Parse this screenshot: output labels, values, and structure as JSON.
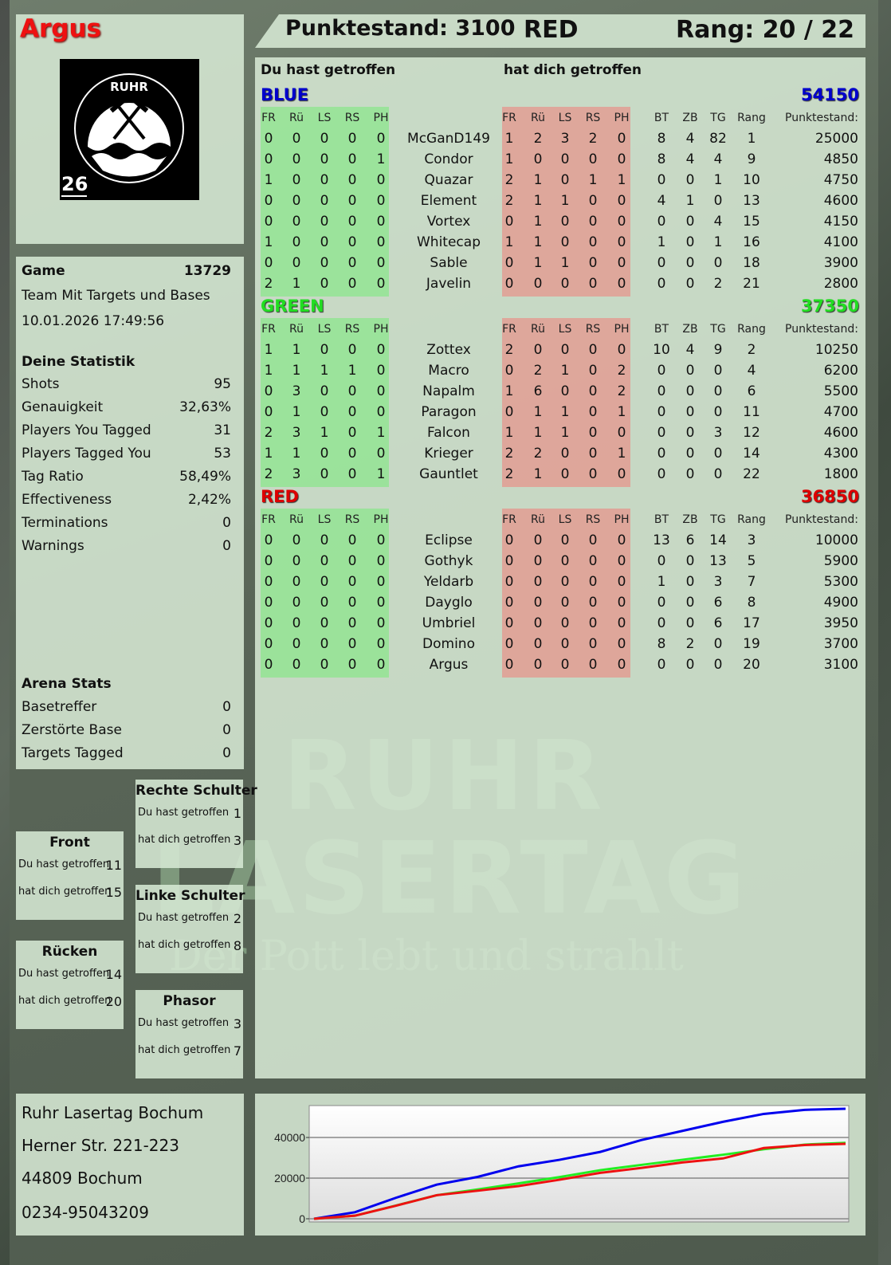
{
  "player": {
    "name": "Argus",
    "badge_number": "26",
    "logo_text": "RUHR LASERTAG"
  },
  "header": {
    "score_label": "Punktestand: 3100",
    "team": "RED",
    "rank_label": "Rang: 20 / 22"
  },
  "main": {
    "you_hit_label": "Du hast getroffen",
    "hit_you_label": "hat dich getroffen",
    "columns_hit": [
      "FR",
      "Rü",
      "LS",
      "RS",
      "PH"
    ],
    "columns_stats": [
      "BT",
      "ZB",
      "TG",
      "Rang"
    ],
    "score_header": "Punktestand:",
    "teams": [
      {
        "name": "BLUE",
        "color": "#0000cc",
        "total": "54150",
        "players": [
          [
            "McGanD149",
            [
              0,
              0,
              0,
              0,
              0
            ],
            [
              1,
              2,
              3,
              2,
              0
            ],
            [
              8,
              4,
              82,
              1
            ],
            25000
          ],
          [
            "Condor",
            [
              0,
              0,
              0,
              0,
              1
            ],
            [
              1,
              0,
              0,
              0,
              0
            ],
            [
              8,
              4,
              4,
              9
            ],
            4850
          ],
          [
            "Quazar",
            [
              1,
              0,
              0,
              0,
              0
            ],
            [
              2,
              1,
              0,
              1,
              1
            ],
            [
              0,
              0,
              1,
              10
            ],
            4750
          ],
          [
            "Element",
            [
              0,
              0,
              0,
              0,
              0
            ],
            [
              2,
              1,
              1,
              0,
              0
            ],
            [
              4,
              1,
              0,
              13
            ],
            4600
          ],
          [
            "Vortex",
            [
              0,
              0,
              0,
              0,
              0
            ],
            [
              0,
              1,
              0,
              0,
              0
            ],
            [
              0,
              0,
              4,
              15
            ],
            4150
          ],
          [
            "Whitecap",
            [
              1,
              0,
              0,
              0,
              0
            ],
            [
              1,
              1,
              0,
              0,
              0
            ],
            [
              1,
              0,
              1,
              16
            ],
            4100
          ],
          [
            "Sable",
            [
              0,
              0,
              0,
              0,
              0
            ],
            [
              0,
              1,
              1,
              0,
              0
            ],
            [
              0,
              0,
              0,
              18
            ],
            3900
          ],
          [
            "Javelin",
            [
              2,
              1,
              0,
              0,
              0
            ],
            [
              0,
              0,
              0,
              0,
              0
            ],
            [
              0,
              0,
              2,
              21
            ],
            2800
          ]
        ]
      },
      {
        "name": "GREEN",
        "color": "#22dd22",
        "total": "37350",
        "players": [
          [
            "Zottex",
            [
              1,
              1,
              0,
              0,
              0
            ],
            [
              2,
              0,
              0,
              0,
              0
            ],
            [
              10,
              4,
              9,
              2
            ],
            10250
          ],
          [
            "Macro",
            [
              1,
              1,
              1,
              1,
              0
            ],
            [
              0,
              2,
              1,
              0,
              2
            ],
            [
              0,
              0,
              0,
              4
            ],
            6200
          ],
          [
            "Napalm",
            [
              0,
              3,
              0,
              0,
              0
            ],
            [
              1,
              6,
              0,
              0,
              2
            ],
            [
              0,
              0,
              0,
              6
            ],
            5500
          ],
          [
            "Paragon",
            [
              0,
              1,
              0,
              0,
              0
            ],
            [
              0,
              1,
              1,
              0,
              1
            ],
            [
              0,
              0,
              0,
              11
            ],
            4700
          ],
          [
            "Falcon",
            [
              2,
              3,
              1,
              0,
              1
            ],
            [
              1,
              1,
              1,
              0,
              0
            ],
            [
              0,
              0,
              3,
              12
            ],
            4600
          ],
          [
            "Krieger",
            [
              1,
              1,
              0,
              0,
              0
            ],
            [
              2,
              2,
              0,
              0,
              1
            ],
            [
              0,
              0,
              0,
              14
            ],
            4300
          ],
          [
            "Gauntlet",
            [
              2,
              3,
              0,
              0,
              1
            ],
            [
              2,
              1,
              0,
              0,
              0
            ],
            [
              0,
              0,
              0,
              22
            ],
            1800
          ]
        ]
      },
      {
        "name": "RED",
        "color": "#dd0000",
        "total": "36850",
        "players": [
          [
            "Eclipse",
            [
              0,
              0,
              0,
              0,
              0
            ],
            [
              0,
              0,
              0,
              0,
              0
            ],
            [
              13,
              6,
              14,
              3
            ],
            10000
          ],
          [
            "Gothyk",
            [
              0,
              0,
              0,
              0,
              0
            ],
            [
              0,
              0,
              0,
              0,
              0
            ],
            [
              0,
              0,
              13,
              5
            ],
            5900
          ],
          [
            "Yeldarb",
            [
              0,
              0,
              0,
              0,
              0
            ],
            [
              0,
              0,
              0,
              0,
              0
            ],
            [
              1,
              0,
              3,
              7
            ],
            5300
          ],
          [
            "Dayglo",
            [
              0,
              0,
              0,
              0,
              0
            ],
            [
              0,
              0,
              0,
              0,
              0
            ],
            [
              0,
              0,
              6,
              8
            ],
            4900
          ],
          [
            "Umbriel",
            [
              0,
              0,
              0,
              0,
              0
            ],
            [
              0,
              0,
              0,
              0,
              0
            ],
            [
              0,
              0,
              6,
              17
            ],
            3950
          ],
          [
            "Domino",
            [
              0,
              0,
              0,
              0,
              0
            ],
            [
              0,
              0,
              0,
              0,
              0
            ],
            [
              8,
              2,
              0,
              19
            ],
            3700
          ],
          [
            "Argus",
            [
              0,
              0,
              0,
              0,
              0
            ],
            [
              0,
              0,
              0,
              0,
              0
            ],
            [
              0,
              0,
              0,
              20
            ],
            3100
          ]
        ]
      }
    ]
  },
  "game": {
    "label": "Game",
    "id": "13729",
    "mode": "Team Mit Targets und Bases",
    "datetime": "10.01.2026 17:49:56"
  },
  "stats": {
    "title": "Deine Statistik",
    "rows": [
      [
        "Shots",
        "95"
      ],
      [
        "Genauigkeit",
        "32,63%"
      ],
      [
        "Players You Tagged",
        "31"
      ],
      [
        "Players Tagged You",
        "53"
      ],
      [
        "Tag Ratio",
        "58,49%"
      ],
      [
        "Effectiveness",
        "2,42%"
      ],
      [
        "Terminations",
        "0"
      ],
      [
        "Warnings",
        "0"
      ]
    ]
  },
  "arena": {
    "title": "Arena Stats",
    "rows": [
      [
        "Basetreffer",
        "0"
      ],
      [
        "Zerstörte Base",
        "0"
      ],
      [
        "Targets Tagged",
        "0"
      ]
    ]
  },
  "zones": [
    {
      "title": "Rechte Schulter",
      "you_hit": "1",
      "hit_you": "3"
    },
    {
      "title": "Front",
      "you_hit": "11",
      "hit_you": "15"
    },
    {
      "title": "Linke Schulter",
      "you_hit": "2",
      "hit_you": "8"
    },
    {
      "title": "Rücken",
      "you_hit": "14",
      "hit_you": "20"
    },
    {
      "title": "Phasor",
      "you_hit": "3",
      "hit_you": "7"
    }
  ],
  "zone_labels": {
    "you_hit": "Du hast getroffen",
    "hit_you": "hat dich getroffen"
  },
  "address": {
    "line1": "Ruhr Lasertag Bochum",
    "line2": "Herner Str. 221-223",
    "line3": "44809 Bochum",
    "line4": "0234-95043209"
  },
  "watermark": {
    "line1": "RUHR",
    "line2": "LASERTAG",
    "slogan": "Der Pott lebt und strahlt"
  },
  "chart_data": {
    "type": "line",
    "ylim": [
      0,
      55700
    ],
    "yticks": [
      "0",
      "20000",
      "40000"
    ],
    "grid": true,
    "legend": "none",
    "x": [
      0,
      1,
      2,
      3,
      4,
      5,
      6,
      7,
      8,
      9,
      10,
      11,
      12,
      13
    ],
    "series": [
      {
        "color": "#0000ee",
        "values": [
          0,
          3200,
          10300,
          16800,
          20600,
          25800,
          29000,
          32900,
          38700,
          43200,
          47700,
          51600,
          53600,
          54150
        ]
      },
      {
        "color": "#22ee22",
        "values": [
          0,
          1500,
          6500,
          11600,
          14400,
          17400,
          20500,
          23900,
          26500,
          29000,
          31500,
          34200,
          36500,
          37350
        ]
      },
      {
        "color": "#ee1111",
        "values": [
          0,
          1500,
          6400,
          11600,
          13800,
          16100,
          19200,
          22600,
          25000,
          27700,
          29700,
          34800,
          36300,
          36850
        ]
      }
    ]
  }
}
